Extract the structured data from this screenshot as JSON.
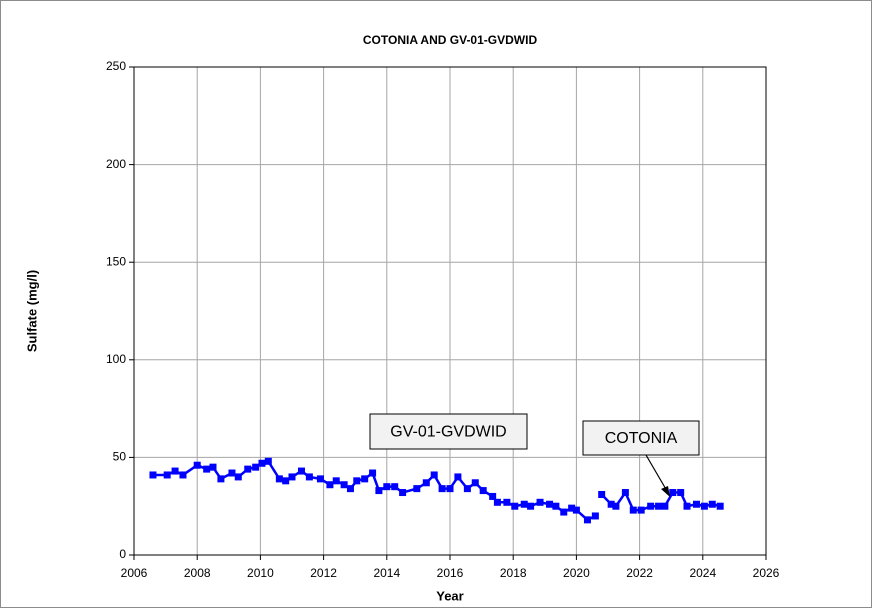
{
  "chart_data": {
    "type": "line",
    "title": "COTONIA AND GV-01-GVDWID",
    "x_label": "Year",
    "y_label": "Sulfate (mg/l)",
    "x": [
      2006.6,
      2007.05,
      2007.3,
      2007.55,
      2008.0,
      2008.3,
      2008.5,
      2008.75,
      2009.1,
      2009.3,
      2009.6,
      2009.85,
      2010.05,
      2010.25,
      2010.6,
      2010.8,
      2011.0,
      2011.3,
      2011.55,
      2011.9,
      2012.2,
      2012.4,
      2012.65,
      2012.85,
      2013.05,
      2013.3,
      2013.55,
      2013.75,
      2014.0,
      2014.25,
      2014.5,
      2014.95,
      2015.25,
      2015.5,
      2015.75,
      2016.0,
      2016.25,
      2016.55,
      2016.8,
      2017.05,
      2017.35,
      2017.5,
      2017.8,
      2018.05,
      2018.35,
      2018.55,
      2018.85,
      2019.15,
      2019.35,
      2019.6,
      2019.85,
      2020.0,
      2020.35,
      2020.6,
      null,
      2020.8,
      2021.1,
      2021.25,
      2021.55,
      2021.8,
      2022.05,
      2022.35,
      2022.6,
      2022.8,
      2023.05,
      2023.3,
      2023.5,
      2023.8,
      2024.05,
      2024.3,
      2024.55
    ],
    "series": [
      {
        "name": "Sulfate",
        "color": "#0000ff",
        "values": [
          41,
          41,
          43,
          41,
          46,
          44,
          45,
          39,
          42,
          40,
          44,
          45,
          47,
          48,
          39,
          38,
          40,
          43,
          40,
          39,
          36,
          38,
          36,
          34,
          38,
          39,
          42,
          33,
          35,
          35,
          32,
          34,
          37,
          41,
          34,
          34,
          40,
          34,
          37,
          33,
          30,
          27,
          27,
          25,
          26,
          25,
          27,
          26,
          25,
          22,
          24,
          23,
          18,
          20,
          null,
          31,
          26,
          25,
          32,
          23,
          23,
          25,
          25,
          25,
          32,
          32,
          25,
          26,
          25,
          26,
          25
        ]
      }
    ],
    "xlim": [
      2006,
      2026
    ],
    "xticks": [
      2006,
      2008,
      2010,
      2012,
      2014,
      2016,
      2018,
      2020,
      2022,
      2024,
      2026
    ],
    "ylim": [
      0,
      250
    ],
    "yticks": [
      0,
      50,
      100,
      150,
      200,
      250
    ],
    "grid": true,
    "annotations": [
      {
        "text": "GV-01-GVDWID"
      },
      {
        "text": "COTONIA"
      }
    ]
  }
}
